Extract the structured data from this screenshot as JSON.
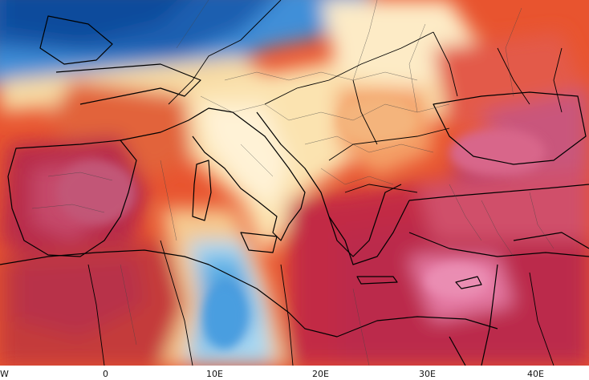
{
  "map": {
    "type": "temperature-anomaly-map",
    "region": "Europe / Mediterranean",
    "x_axis_labels": [
      "W",
      "0",
      "10E",
      "20E",
      "30E",
      "40E"
    ]
  },
  "colors": {
    "deep_blue": "#0b4c9c",
    "mid_blue": "#3f8fd8",
    "light_blue": "#a8d8f2",
    "pale": "#fff4d8",
    "cream": "#fce2a8",
    "orange": "#f08a4b",
    "red_orange": "#e44a2e",
    "red": "#c8283a",
    "crimson": "#b72749",
    "pink": "#e57aa4",
    "border": "#000000",
    "admin_border": "#555555"
  }
}
